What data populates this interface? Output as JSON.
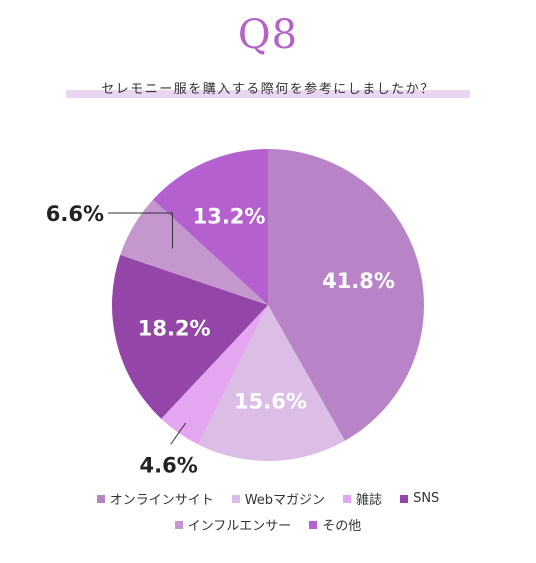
{
  "header": {
    "title": "Q8",
    "question": "セレモニー服を購入する際何を参考にしましたか？"
  },
  "colors": {
    "online": "#b983c8",
    "web_magazine": "#dcbde6",
    "magazine": "#e4a6f0",
    "sns": "#9445a8",
    "influencer": "#c497cf",
    "other": "#b461cf"
  },
  "chart_data": {
    "type": "pie",
    "slices": [
      {
        "label": "オンラインサイト",
        "value": 41.8,
        "display": "41.8%"
      },
      {
        "label": "Webマガジン",
        "value": 15.6,
        "display": "15.6%"
      },
      {
        "label": "雑誌",
        "value": 4.6,
        "display": "4.6%"
      },
      {
        "label": "SNS",
        "value": 18.2,
        "display": "18.2%"
      },
      {
        "label": "インフルエンサー",
        "value": 6.6,
        "display": "6.6%"
      },
      {
        "label": "その他",
        "value": 13.2,
        "display": "13.2%"
      }
    ],
    "legend_position": "bottom"
  }
}
